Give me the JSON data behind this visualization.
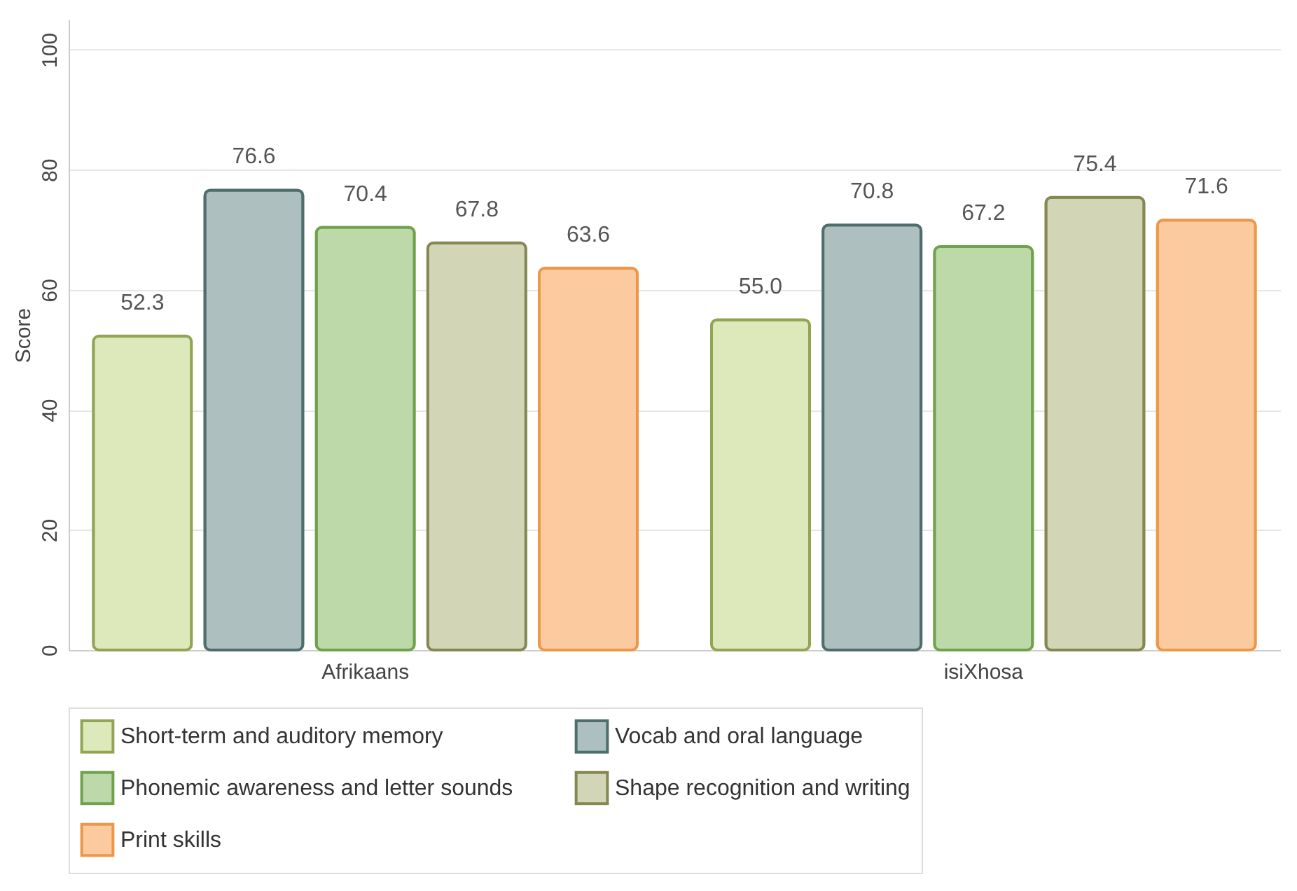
{
  "chart_data": {
    "type": "bar",
    "ylabel": "Score",
    "categories": [
      "Afrikaans",
      "isiXhosa"
    ],
    "series": [
      {
        "name": "Short-term and auditory memory",
        "color": "#dde8bb",
        "values": [
          52.3,
          55.0
        ]
      },
      {
        "name": "Vocab and oral language",
        "color": "#adbfbe",
        "values": [
          76.6,
          70.8
        ]
      },
      {
        "name": "Phonemic awareness and letter sounds",
        "color": "#bdd9a9",
        "values": [
          70.4,
          67.2
        ]
      },
      {
        "name": "Shape recognition and writing",
        "color": "#d3d5b7",
        "values": [
          67.8,
          75.4
        ]
      },
      {
        "name": "Print skills",
        "color": "#fbcb9f",
        "values": [
          63.6,
          71.6
        ]
      }
    ],
    "value_labels": [
      [
        "52.3",
        "55.0"
      ],
      [
        "76.6",
        "70.8"
      ],
      [
        "70.4",
        "67.2"
      ],
      [
        "67.8",
        "75.4"
      ],
      [
        "63.6",
        "71.6"
      ]
    ],
    "ylim": [
      0,
      105
    ],
    "yticks": [
      0,
      20,
      40,
      60,
      80,
      100
    ],
    "grid": "y",
    "legend": "bottom"
  }
}
